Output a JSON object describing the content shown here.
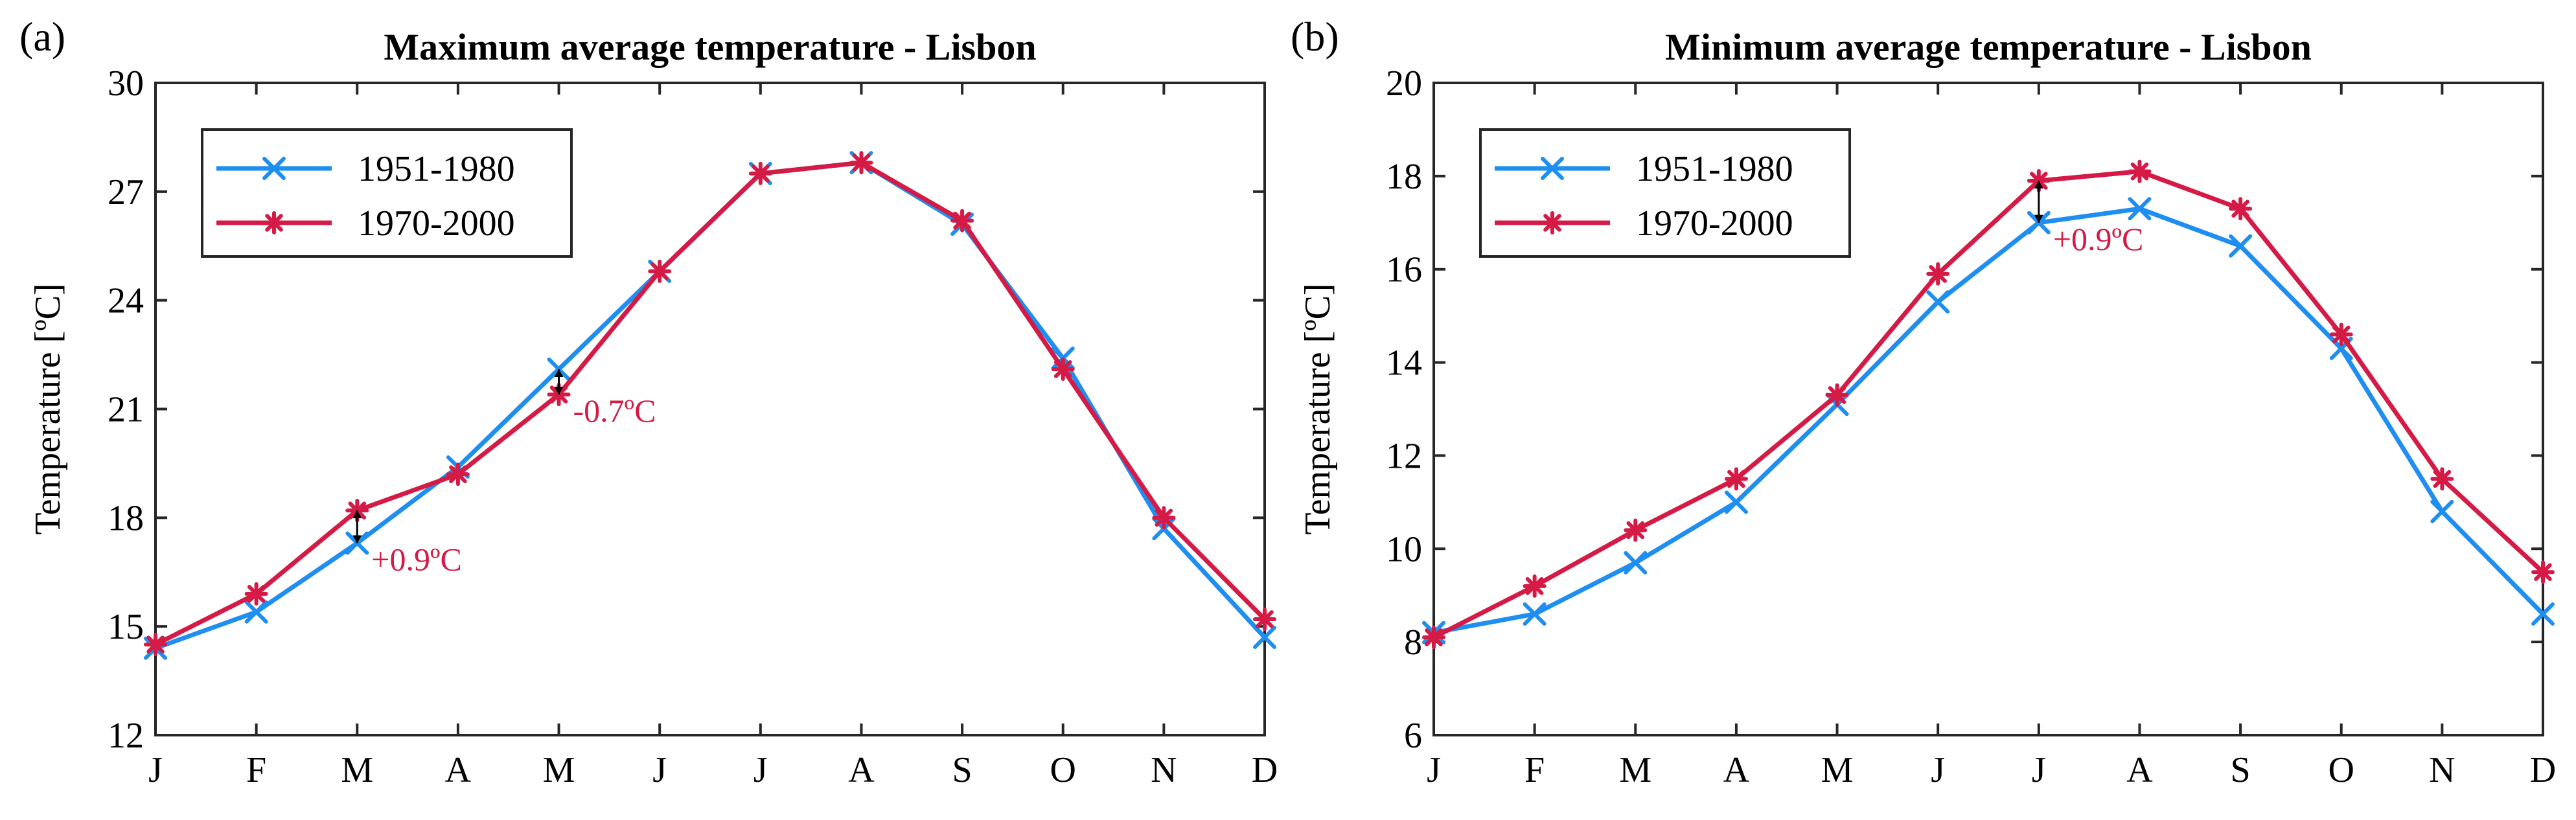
{
  "chart_data": [
    {
      "type": "line",
      "panel_label": "(a)",
      "title": "Maximum average temperature - Lisbon",
      "xlabel": "",
      "ylabel": "Temperature [ºC]",
      "categories": [
        "J",
        "F",
        "M",
        "A",
        "M",
        "J",
        "J",
        "A",
        "S",
        "O",
        "N",
        "D"
      ],
      "ylim": [
        12,
        30
      ],
      "yticks": [
        "12",
        "15",
        "18",
        "21",
        "24",
        "27",
        "30"
      ],
      "grid": false,
      "legend_position": "top-left",
      "series": [
        {
          "name": "1951-1980",
          "color": "#1f8ef1",
          "marker": "x",
          "values": [
            14.4,
            15.4,
            17.3,
            19.4,
            22.1,
            24.8,
            27.5,
            27.8,
            26.1,
            22.4,
            17.7,
            14.7
          ]
        },
        {
          "name": "1970-2000",
          "color": "#d41a45",
          "marker": "asterisk",
          "values": [
            14.5,
            15.9,
            18.2,
            19.2,
            21.4,
            24.8,
            27.5,
            27.8,
            26.2,
            22.1,
            18.0,
            15.2
          ]
        }
      ],
      "annotations": [
        {
          "text": "+0.9ºC",
          "month_index": 2,
          "from": 17.3,
          "to": 18.2,
          "color": "#d41a45"
        },
        {
          "text": "-0.7ºC",
          "month_index": 4,
          "from": 22.1,
          "to": 21.4,
          "color": "#d41a45"
        }
      ]
    },
    {
      "type": "line",
      "panel_label": "(b)",
      "title": "Minimum average temperature - Lisbon",
      "xlabel": "",
      "ylabel": "Temperature [ºC]",
      "categories": [
        "J",
        "F",
        "M",
        "A",
        "M",
        "J",
        "J",
        "A",
        "S",
        "O",
        "N",
        "D"
      ],
      "ylim": [
        6,
        20
      ],
      "yticks": [
        "6",
        "8",
        "10",
        "12",
        "14",
        "16",
        "18",
        "20"
      ],
      "grid": false,
      "legend_position": "top-left",
      "series": [
        {
          "name": "1951-1980",
          "color": "#1f8ef1",
          "marker": "x",
          "values": [
            8.2,
            8.6,
            9.7,
            11.0,
            13.1,
            15.3,
            17.0,
            17.3,
            16.5,
            14.3,
            10.8,
            8.6
          ]
        },
        {
          "name": "1970-2000",
          "color": "#d41a45",
          "marker": "asterisk",
          "values": [
            8.1,
            9.2,
            10.4,
            11.5,
            13.3,
            15.9,
            17.9,
            18.1,
            17.3,
            14.6,
            11.5,
            9.5
          ]
        }
      ],
      "annotations": [
        {
          "text": "+0.9ºC",
          "month_index": 6,
          "from": 17.0,
          "to": 17.9,
          "color": "#d41a45"
        }
      ]
    }
  ]
}
